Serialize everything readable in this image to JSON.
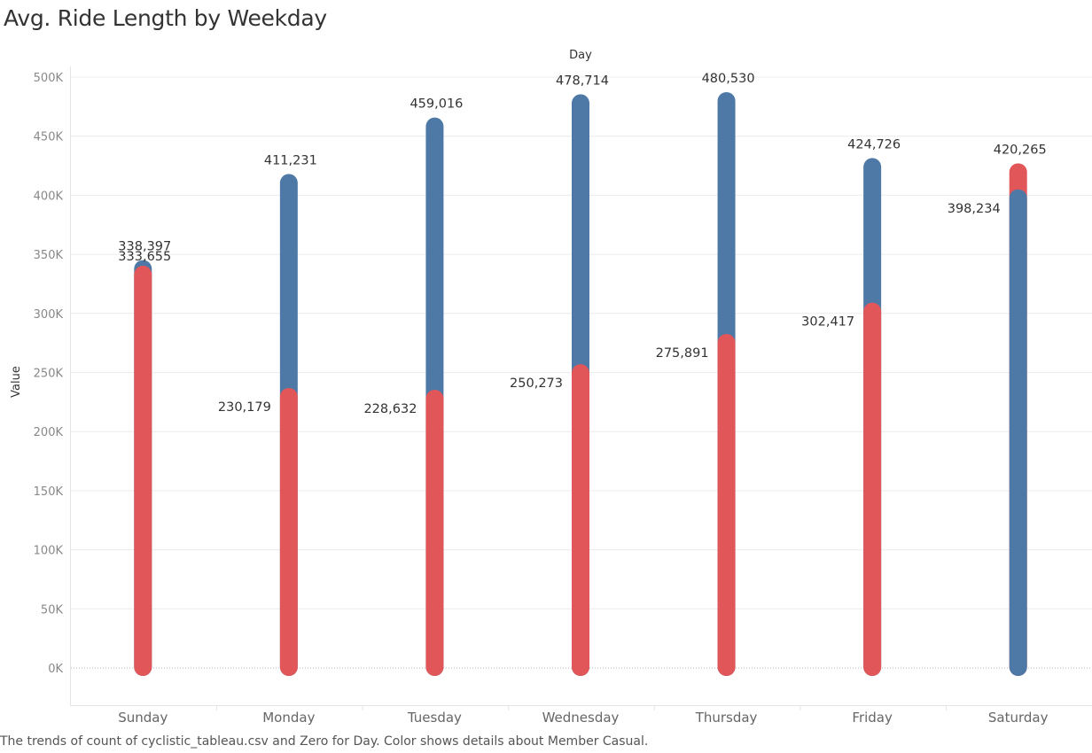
{
  "title": "Avg. Ride Length by Weekday",
  "caption": "The trends of count of cyclistic_tableau.csv and Zero for Day.  Color shows details about Member Casual.",
  "colors": {
    "casual": "#4e79a7",
    "member": "#e15759",
    "grid": "#ececec",
    "axis_text": "#888888"
  },
  "chart_data": {
    "type": "bar",
    "xlabel": "Day",
    "ylabel": "Value",
    "ylim": [
      0,
      500000
    ],
    "ytick_values": [
      0,
      50000,
      100000,
      150000,
      200000,
      250000,
      300000,
      350000,
      400000,
      450000,
      500000
    ],
    "ytick_labels": [
      "0K",
      "50K",
      "100K",
      "150K",
      "200K",
      "250K",
      "300K",
      "350K",
      "400K",
      "450K",
      "500K"
    ],
    "categories": [
      "Sunday",
      "Monday",
      "Tuesday",
      "Wednesday",
      "Thursday",
      "Friday",
      "Saturday"
    ],
    "series": [
      {
        "values": [
          338397,
          411231,
          459016,
          478714,
          480530,
          424726,
          398234
        ],
        "labels": [
          "338,397",
          "411,231",
          "459,016",
          "478,714",
          "480,530",
          "424,726",
          "398,234"
        ]
      },
      {
        "values": [
          333655,
          230179,
          228632,
          250273,
          275891,
          302417,
          420265
        ],
        "labels": [
          "333,655",
          "230,179",
          "228,632",
          "250,273",
          "275,891",
          "302,417",
          "420,265"
        ]
      }
    ]
  }
}
